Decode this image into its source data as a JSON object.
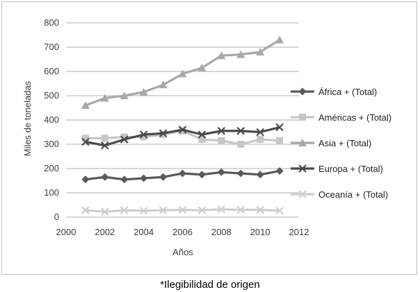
{
  "caption": "*Ilegibilidad de origen",
  "chart_data": {
    "type": "line",
    "title": "",
    "xlabel": "Años",
    "ylabel": "Miles de toneladas",
    "xlim": [
      2000,
      2012
    ],
    "ylim": [
      0,
      800
    ],
    "xticks": [
      "2000",
      "2002",
      "2004",
      "2006",
      "2008",
      "2010",
      "2012"
    ],
    "yticks": [
      "0",
      "100",
      "200",
      "300",
      "400",
      "500",
      "600",
      "700",
      "800"
    ],
    "grid": "horizontal",
    "legend_position": "right",
    "x": [
      2001,
      2002,
      2003,
      2004,
      2005,
      2006,
      2007,
      2008,
      2009,
      2010,
      2011
    ],
    "series": [
      {
        "name": "África + (Total)",
        "color": "#595959",
        "marker": "diamond",
        "values": [
          155,
          165,
          155,
          160,
          165,
          180,
          175,
          185,
          180,
          175,
          190
        ]
      },
      {
        "name": "Américas + (Total)",
        "color": "#c6c6c6",
        "marker": "square",
        "values": [
          325,
          325,
          330,
          330,
          340,
          355,
          320,
          315,
          300,
          320,
          315
        ]
      },
      {
        "name": "Asia + (Total)",
        "color": "#a8a8a8",
        "marker": "triangle",
        "values": [
          460,
          490,
          500,
          515,
          545,
          590,
          615,
          665,
          670,
          680,
          730
        ]
      },
      {
        "name": "Europa + (Total)",
        "color": "#4a4a4a",
        "marker": "x",
        "values": [
          310,
          295,
          320,
          340,
          345,
          360,
          340,
          355,
          355,
          350,
          370
        ]
      },
      {
        "name": "Oceanía + (Total)",
        "color": "#cdcdcd",
        "marker": "x",
        "values": [
          28,
          22,
          28,
          26,
          28,
          30,
          28,
          32,
          30,
          30,
          26
        ]
      }
    ]
  }
}
